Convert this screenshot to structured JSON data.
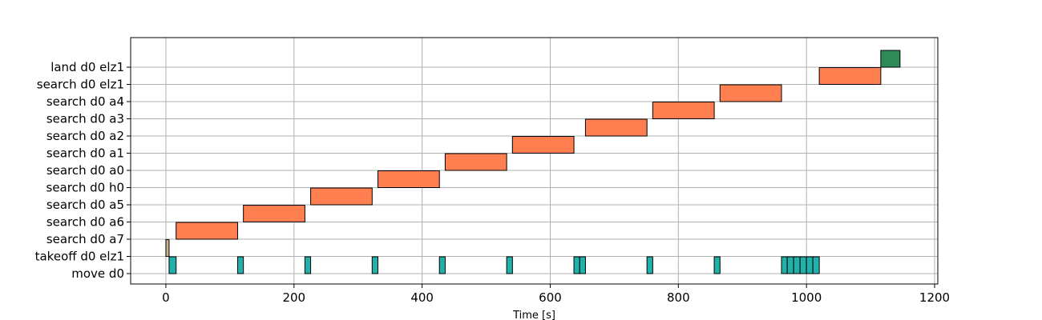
{
  "chart_data": {
    "type": "gantt",
    "title": "",
    "xlabel": "Time [s]",
    "ylabel": "",
    "xlim": [
      -55,
      1205
    ],
    "xticks": [
      0,
      200,
      400,
      600,
      800,
      1000,
      1200
    ],
    "xtick_labels": [
      "0",
      "200",
      "400",
      "600",
      "800",
      "1000",
      "1200"
    ],
    "grid": true,
    "legend": "none",
    "rows": [
      "move d0",
      "takeoff d0 elz1",
      "search d0 a7",
      "search d0 a6",
      "search d0 a5",
      "search d0 h0",
      "search d0 a0",
      "search d0 a1",
      "search d0 a2",
      "search d0 a3",
      "search d0 a4",
      "search d0 elz1",
      "land d0 elz1"
    ],
    "colors": {
      "move": "#20b2aa",
      "takeoff": "#d2b48c",
      "search": "#ff7f50",
      "land": "#2e8b57",
      "grid": "#b0b0b0"
    },
    "tasks": [
      {
        "row": "takeoff d0 elz1",
        "start": 0,
        "end": 5,
        "kind": "takeoff"
      },
      {
        "row": "move d0",
        "start": 5,
        "end": 16,
        "kind": "move"
      },
      {
        "row": "search d0 a7",
        "start": 16,
        "end": 112,
        "kind": "search"
      },
      {
        "row": "move d0",
        "start": 112,
        "end": 121,
        "kind": "move"
      },
      {
        "row": "search d0 a6",
        "start": 121,
        "end": 217,
        "kind": "search"
      },
      {
        "row": "move d0",
        "start": 217,
        "end": 226,
        "kind": "move"
      },
      {
        "row": "search d0 a5",
        "start": 226,
        "end": 322,
        "kind": "search"
      },
      {
        "row": "move d0",
        "start": 322,
        "end": 331,
        "kind": "move"
      },
      {
        "row": "search d0 h0",
        "start": 331,
        "end": 427,
        "kind": "search"
      },
      {
        "row": "move d0",
        "start": 427,
        "end": 436,
        "kind": "move"
      },
      {
        "row": "search d0 a0",
        "start": 436,
        "end": 532,
        "kind": "search"
      },
      {
        "row": "move d0",
        "start": 532,
        "end": 541,
        "kind": "move"
      },
      {
        "row": "search d0 a1",
        "start": 541,
        "end": 637,
        "kind": "search"
      },
      {
        "row": "move d0",
        "start": 637,
        "end": 646,
        "kind": "move"
      },
      {
        "row": "move d0",
        "start": 646,
        "end": 655,
        "kind": "move"
      },
      {
        "row": "search d0 a2",
        "start": 655,
        "end": 751,
        "kind": "search"
      },
      {
        "row": "move d0",
        "start": 751,
        "end": 760,
        "kind": "move"
      },
      {
        "row": "search d0 a3",
        "start": 760,
        "end": 856,
        "kind": "search"
      },
      {
        "row": "move d0",
        "start": 856,
        "end": 865,
        "kind": "move"
      },
      {
        "row": "search d0 a4",
        "start": 865,
        "end": 961,
        "kind": "search"
      },
      {
        "row": "move d0",
        "start": 961,
        "end": 970,
        "kind": "move"
      },
      {
        "row": "move d0",
        "start": 970,
        "end": 980,
        "kind": "move"
      },
      {
        "row": "move d0",
        "start": 980,
        "end": 990,
        "kind": "move"
      },
      {
        "row": "move d0",
        "start": 990,
        "end": 1000,
        "kind": "move"
      },
      {
        "row": "move d0",
        "start": 1000,
        "end": 1010,
        "kind": "move"
      },
      {
        "row": "move d0",
        "start": 1010,
        "end": 1020,
        "kind": "move"
      },
      {
        "row": "search d0 elz1",
        "start": 1020,
        "end": 1116,
        "kind": "search"
      },
      {
        "row": "land d0 elz1",
        "start": 1116,
        "end": 1146,
        "kind": "land"
      }
    ]
  }
}
